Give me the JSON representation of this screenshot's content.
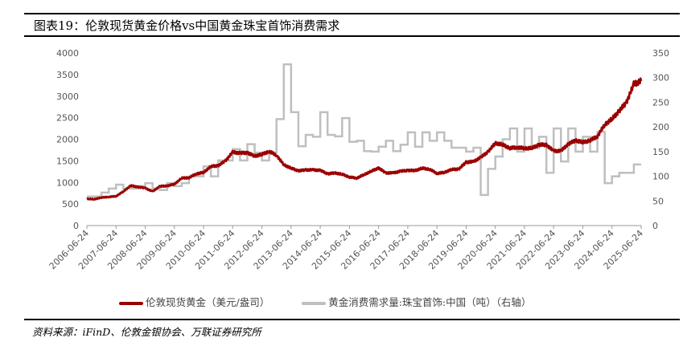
{
  "title": "图表19：伦敦现货黄金价格vs中国黄金珠宝首饰消费需求",
  "source": "资料来源：iFinD、伦敦金银协会、万联证券研究所",
  "chart_data": {
    "type": "line",
    "title": "图表19：伦敦现货黄金价格vs中国黄金珠宝首饰消费需求",
    "x_ticks": [
      "2006-06-24",
      "2007-06-24",
      "2008-06-24",
      "2009-06-24",
      "2010-06-24",
      "2011-06-24",
      "2012-06-24",
      "2013-06-24",
      "2014-06-24",
      "2015-06-24",
      "2016-06-24",
      "2017-06-24",
      "2018-06-24",
      "2019-06-24",
      "2020-06-24",
      "2021-06-24",
      "2022-06-24",
      "2023-06-24",
      "2024-06-24",
      "2025-06-24"
    ],
    "y_left": {
      "range": [
        0,
        4000
      ],
      "ticks": [
        0,
        500,
        1000,
        1500,
        2000,
        2500,
        3000,
        3500,
        4000
      ]
    },
    "y_right": {
      "range": [
        0,
        350
      ],
      "ticks": [
        0,
        50,
        100,
        150,
        200,
        250,
        300,
        350
      ]
    },
    "x_start_year": 2006.5,
    "x_end_year": 2025.5,
    "series": [
      {
        "name": "伦敦现货黄金（美元/盎司）",
        "axis": "left",
        "color": "#9b0000",
        "frequency": "quarterly",
        "start": "2006Q3",
        "values": [
          620,
          610,
          650,
          665,
          680,
          790,
          925,
          895,
          870,
          790,
          910,
          920,
          960,
          1100,
          1110,
          1200,
          1230,
          1370,
          1390,
          1500,
          1700,
          1680,
          1690,
          1610,
          1650,
          1720,
          1630,
          1410,
          1330,
          1270,
          1290,
          1290,
          1280,
          1200,
          1220,
          1190,
          1125,
          1100,
          1180,
          1260,
          1335,
          1220,
          1220,
          1260,
          1280,
          1275,
          1330,
          1305,
          1210,
          1230,
          1300,
          1310,
          1470,
          1480,
          1580,
          1710,
          1910,
          1875,
          1795,
          1815,
          1790,
          1795,
          1875,
          1870,
          1730,
          1730,
          1890,
          1975,
          1930,
          1975,
          2070,
          2340,
          2470,
          2660,
          2860,
          3280,
          3350
        ]
      },
      {
        "name": "黄金消费需求量:珠宝首饰:中国（吨）（右轴）",
        "axis": "right",
        "color": "#bfbfbf",
        "frequency": "quarterly",
        "start": "2006Q3",
        "values": [
          59,
          59,
          67,
          75,
          83,
          75,
          75,
          80,
          86,
          75,
          72,
          86,
          80,
          86,
          100,
          100,
          120,
          100,
          132,
          132,
          155,
          132,
          165,
          148,
          132,
          148,
          216,
          327,
          230,
          161,
          184,
          180,
          230,
          184,
          181,
          218,
          170,
          172,
          151,
          150,
          160,
          172,
          151,
          164,
          189,
          160,
          189,
          172,
          189,
          172,
          158,
          158,
          150,
          158,
          62,
          115,
          140,
          175,
          197,
          150,
          197,
          157,
          180,
          107,
          197,
          130,
          197,
          150,
          180,
          150,
          190,
          86,
          100,
          107,
          107,
          124
        ]
      }
    ]
  }
}
